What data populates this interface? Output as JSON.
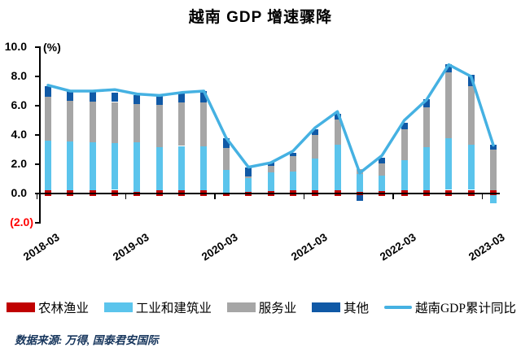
{
  "title": "越南 GDP 增速骤降",
  "footer": {
    "source": "数据来源: 万得, 国泰君安国际"
  },
  "chart_data": {
    "type": "stacked-bar+line",
    "title": "越南 GDP 增速骤降",
    "unit_label": "(%)",
    "ylim": [
      -2.0,
      10.0
    ],
    "grid": false,
    "legend_position": "bottom",
    "yticks": [
      {
        "label": "10.0",
        "value": 10.0
      },
      {
        "label": "8.0",
        "value": 8.0
      },
      {
        "label": "6.0",
        "value": 6.0
      },
      {
        "label": "4.0",
        "value": 4.0
      },
      {
        "label": "2.0",
        "value": 2.0
      },
      {
        "label": "0.0",
        "value": 0.0
      },
      {
        "label": "(2.0)",
        "value": -2.0
      }
    ],
    "negative_tick_color": "#FF0000",
    "xtick_labels": [
      "2018-03",
      "2019-03",
      "2020-03",
      "2021-03",
      "2022-03",
      "2023-03"
    ],
    "xtick_every": 4,
    "categories": [
      "2018-03",
      "2018-06",
      "2018-09",
      "2018-12",
      "2019-03",
      "2019-06",
      "2019-09",
      "2019-12",
      "2020-03",
      "2020-06",
      "2020-09",
      "2020-12",
      "2021-03",
      "2021-06",
      "2021-09",
      "2021-12",
      "2022-03",
      "2022-06",
      "2022-09",
      "2022-12",
      "2023-03"
    ],
    "bar_series": [
      {
        "name": "农林渔业",
        "key": "agriculture",
        "color": "#C00000",
        "values": [
          0.2,
          0.2,
          0.2,
          0.25,
          0.1,
          0.2,
          0.2,
          0.2,
          0.05,
          0.1,
          0.15,
          0.25,
          0.2,
          0.2,
          0.1,
          0.15,
          0.2,
          0.2,
          0.25,
          0.25,
          0.25
        ]
      },
      {
        "name": "工业和建筑业",
        "key": "industry-construction",
        "color": "#5BC4EC",
        "values": [
          3.4,
          3.35,
          3.3,
          3.2,
          3.4,
          2.95,
          3.05,
          3.0,
          1.55,
          0.95,
          1.3,
          1.25,
          2.2,
          3.15,
          1.25,
          1.05,
          2.1,
          2.95,
          3.55,
          3.1,
          -0.55
        ]
      },
      {
        "name": "服务业",
        "key": "services",
        "color": "#A6A6A6",
        "values": [
          3.0,
          2.8,
          2.8,
          2.8,
          2.6,
          2.9,
          2.95,
          3.05,
          1.5,
          0.1,
          0.45,
          1.05,
          1.6,
          1.7,
          0.3,
          0.85,
          2.1,
          2.75,
          4.5,
          4.0,
          2.75
        ]
      },
      {
        "name": "其他",
        "key": "other",
        "color": "#1059A6",
        "values": [
          0.75,
          0.65,
          0.65,
          0.65,
          0.65,
          0.65,
          0.65,
          0.75,
          0.7,
          0.65,
          0.2,
          0.25,
          0.4,
          0.4,
          -0.4,
          0.4,
          0.45,
          0.55,
          0.55,
          0.75,
          0.35
        ]
      }
    ],
    "line_series": {
      "name": "越南GDP累计同比",
      "key": "gdp-line",
      "color": "#45B1E2",
      "values": [
        7.4,
        7.0,
        7.0,
        7.1,
        6.8,
        6.7,
        6.9,
        7.0,
        3.8,
        1.8,
        2.1,
        2.9,
        4.5,
        5.6,
        1.4,
        2.6,
        5.0,
        6.4,
        8.8,
        8.0,
        3.3
      ]
    }
  }
}
